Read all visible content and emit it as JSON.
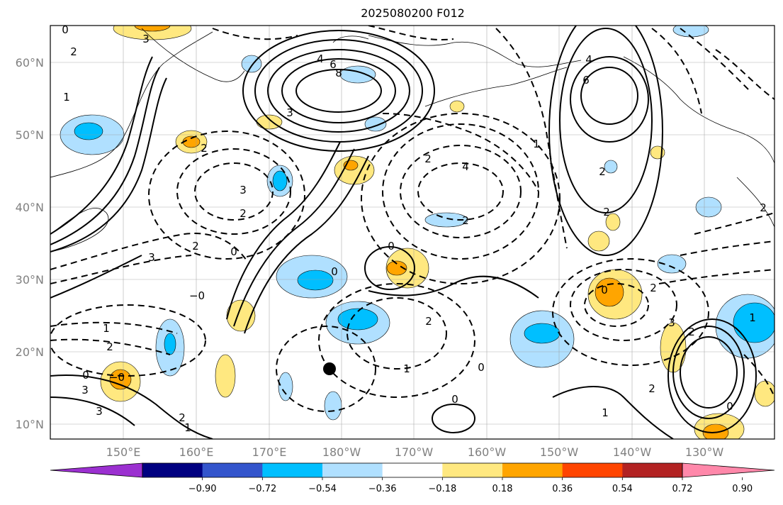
{
  "title": "2025080200 F012",
  "map": {
    "lat_labels": [
      "60°N",
      "50°N",
      "40°N",
      "30°N",
      "20°N",
      "10°N"
    ],
    "lon_labels": [
      "150°E",
      "160°E",
      "170°E",
      "180°W",
      "170°W",
      "160°W",
      "150°W",
      "140°W",
      "130°W"
    ]
  },
  "colorbar": {
    "colors": [
      "#9b30d0",
      "#000080",
      "#3355cc",
      "#00bfff",
      "#b0e0ff",
      "#ffffff",
      "#ffe880",
      "#ffa500",
      "#ff4500",
      "#b22222",
      "#ff88aa"
    ],
    "tick_labels": [
      "−0.90",
      "−0.72",
      "−0.54",
      "−0.36",
      "−0.18",
      "0.18",
      "0.36",
      "0.54",
      "0.72",
      "0.90"
    ]
  },
  "contour_labels": [
    "0",
    "2",
    "3",
    "1",
    "4",
    "6",
    "8",
    "2",
    "3",
    "3",
    "2",
    "3",
    "2",
    "0",
    "0",
    "−0",
    "−0",
    "0",
    "0",
    "2",
    "1",
    "2",
    "3",
    "3",
    "2",
    "2",
    "4",
    "1",
    "6",
    "4",
    "2",
    "2",
    "2",
    "0",
    "2",
    "3",
    "2",
    "1",
    "1",
    "2",
    "1",
    "0",
    "0",
    "1",
    "0",
    "2"
  ]
}
